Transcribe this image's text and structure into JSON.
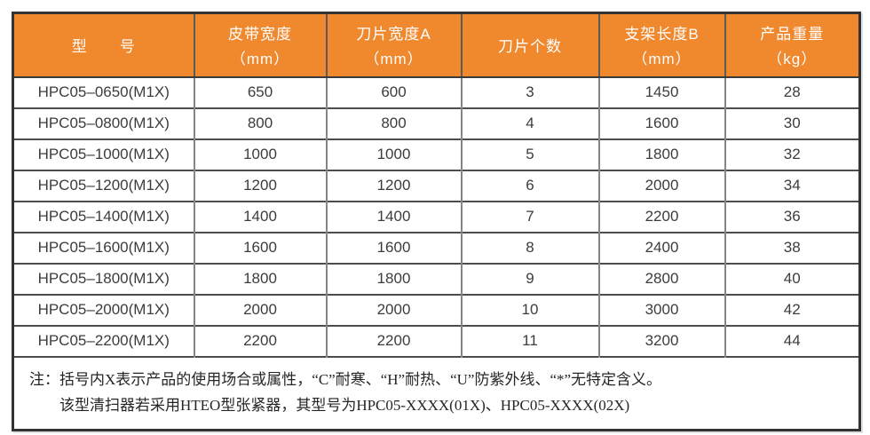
{
  "colors": {
    "header_bg": "#F0882E",
    "header_text": "#FFFFFF",
    "body_text": "#3C3C3C",
    "outer_border": "#333333",
    "grid_vertical": "#868686",
    "grid_horizontal": "#4C4C4C"
  },
  "table": {
    "columns": [
      {
        "label": "型　　号",
        "sub": ""
      },
      {
        "label": "皮带宽度",
        "sub": "（mm）"
      },
      {
        "label": "刀片宽度A",
        "sub": "（mm）"
      },
      {
        "label": "刀片个数",
        "sub": ""
      },
      {
        "label": "支架长度B",
        "sub": "（mm）"
      },
      {
        "label": "产品重量",
        "sub": "（kg）"
      }
    ],
    "rows": [
      [
        "HPC05–0650(M1X)",
        "650",
        "600",
        "3",
        "1450",
        "28"
      ],
      [
        "HPC05–0800(M1X)",
        "800",
        "800",
        "4",
        "1600",
        "30"
      ],
      [
        "HPC05–1000(M1X)",
        "1000",
        "1000",
        "5",
        "1800",
        "32"
      ],
      [
        "HPC05–1200(M1X)",
        "1200",
        "1200",
        "6",
        "2000",
        "34"
      ],
      [
        "HPC05–1400(M1X)",
        "1400",
        "1400",
        "7",
        "2200",
        "36"
      ],
      [
        "HPC05–1600(M1X)",
        "1600",
        "1600",
        "8",
        "2400",
        "38"
      ],
      [
        "HPC05–1800(M1X)",
        "1800",
        "1800",
        "9",
        "2800",
        "40"
      ],
      [
        "HPC05–2000(M1X)",
        "2000",
        "2000",
        "10",
        "3000",
        "42"
      ],
      [
        "HPC05–2200(M1X)",
        "2200",
        "2200",
        "11",
        "3200",
        "44"
      ]
    ]
  },
  "note": {
    "prefix": "注：",
    "line1": "括号内X表示产品的使用场合或属性，“C”耐寒、“H”耐热、“U”防紫外线、“*”无特定含义。",
    "line2": "该型清扫器若采用HTEO型张紧器，其型号为HPC05-XXXX(01X)、HPC05-XXXX(02X)"
  }
}
